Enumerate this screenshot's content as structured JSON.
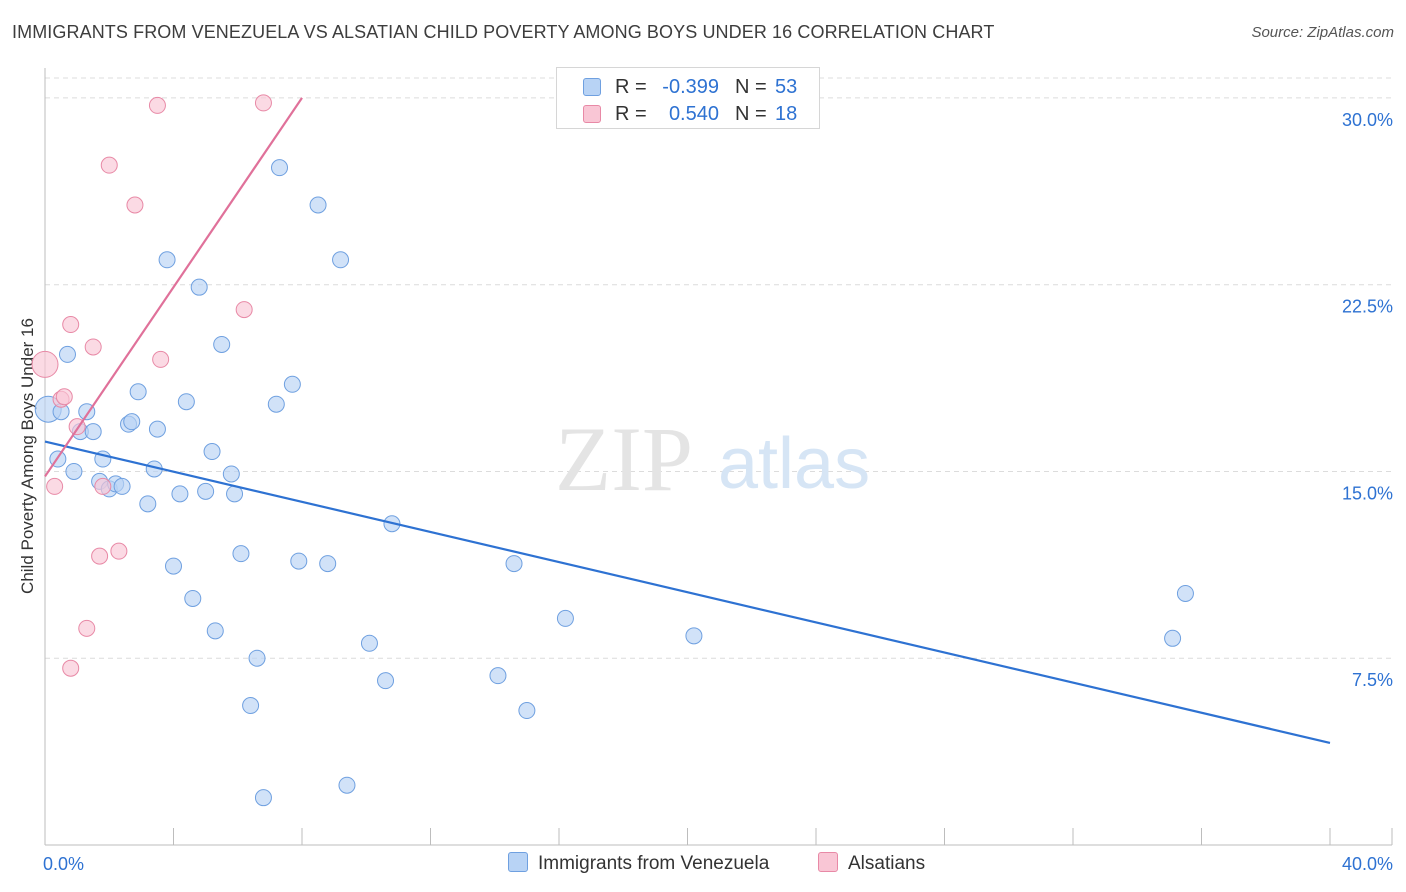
{
  "title": "IMMIGRANTS FROM VENEZUELA VS ALSATIAN CHILD POVERTY AMONG BOYS UNDER 16 CORRELATION CHART",
  "source": "Source: ZipAtlas.com",
  "watermark": {
    "zip": "ZIP",
    "atlas": "atlas"
  },
  "legend": {
    "r_label": "R =",
    "n_label": "N =",
    "rows": [
      {
        "r": "-0.399",
        "n": "53",
        "fill": "#b8d3f5",
        "stroke": "#6fa0e0"
      },
      {
        "r": "0.540",
        "n": "18",
        "fill": "#f9c6d5",
        "stroke": "#e889a6"
      }
    ]
  },
  "bottom_legend": [
    {
      "label": "Immigrants from Venezuela",
      "fill": "#b8d3f5",
      "stroke": "#6fa0e0"
    },
    {
      "label": "Alsatians",
      "fill": "#f9c6d5",
      "stroke": "#e889a6"
    }
  ],
  "chart_data": {
    "type": "scatter",
    "title": "IMMIGRANTS FROM VENEZUELA VS ALSATIAN CHILD POVERTY AMONG BOYS UNDER 16 CORRELATION CHART",
    "xlabel": "",
    "ylabel": "Child Poverty Among Boys Under 16",
    "xlim": [
      0,
      40
    ],
    "ylim": [
      0,
      30.8
    ],
    "x_tick_labels": [
      "0.0%",
      "40.0%"
    ],
    "y_ticks": [
      7.5,
      15.0,
      22.5,
      30.0
    ],
    "y_tick_labels": [
      "7.5%",
      "15.0%",
      "22.5%",
      "30.0%"
    ],
    "grid": true,
    "series": [
      {
        "name": "Immigrants from Venezuela",
        "color": "#2e72d2",
        "point_fill": "#b8d3f5",
        "point_stroke": "#6fa0e0",
        "points": [
          [
            0.1,
            17.5
          ],
          [
            0.4,
            15.5
          ],
          [
            0.5,
            17.4
          ],
          [
            0.7,
            19.7
          ],
          [
            0.9,
            15.0
          ],
          [
            1.1,
            16.6
          ],
          [
            1.3,
            17.4
          ],
          [
            1.5,
            16.6
          ],
          [
            1.7,
            14.6
          ],
          [
            1.8,
            15.5
          ],
          [
            2.0,
            14.3
          ],
          [
            2.2,
            14.5
          ],
          [
            2.4,
            14.4
          ],
          [
            2.6,
            16.9
          ],
          [
            2.7,
            17.0
          ],
          [
            2.9,
            18.2
          ],
          [
            3.2,
            13.7
          ],
          [
            3.4,
            15.1
          ],
          [
            3.5,
            16.7
          ],
          [
            3.8,
            23.5
          ],
          [
            4.0,
            11.2
          ],
          [
            4.2,
            14.1
          ],
          [
            4.4,
            17.8
          ],
          [
            4.6,
            9.9
          ],
          [
            4.8,
            22.4
          ],
          [
            5.0,
            14.2
          ],
          [
            5.2,
            15.8
          ],
          [
            5.3,
            8.6
          ],
          [
            5.5,
            20.1
          ],
          [
            5.8,
            14.9
          ],
          [
            5.9,
            14.1
          ],
          [
            6.1,
            11.7
          ],
          [
            6.4,
            5.6
          ],
          [
            6.6,
            7.5
          ],
          [
            6.8,
            1.9
          ],
          [
            7.2,
            17.7
          ],
          [
            7.3,
            27.2
          ],
          [
            7.7,
            18.5
          ],
          [
            7.9,
            11.4
          ],
          [
            8.5,
            25.7
          ],
          [
            8.8,
            11.3
          ],
          [
            9.2,
            23.5
          ],
          [
            9.4,
            2.4
          ],
          [
            10.1,
            8.1
          ],
          [
            10.6,
            6.6
          ],
          [
            10.8,
            12.9
          ],
          [
            14.1,
            6.8
          ],
          [
            14.6,
            11.3
          ],
          [
            15.0,
            5.4
          ],
          [
            16.2,
            9.1
          ],
          [
            20.2,
            8.4
          ],
          [
            35.1,
            8.3
          ],
          [
            35.5,
            10.1
          ]
        ]
      },
      {
        "name": "Alsatians",
        "color": "#e0719a",
        "point_fill": "#f9c6d5",
        "point_stroke": "#e889a6",
        "points": [
          [
            0.0,
            19.3
          ],
          [
            0.3,
            14.4
          ],
          [
            0.5,
            17.9
          ],
          [
            0.6,
            18.0
          ],
          [
            0.8,
            7.1
          ],
          [
            0.8,
            20.9
          ],
          [
            1.0,
            16.8
          ],
          [
            1.3,
            8.7
          ],
          [
            1.5,
            20.0
          ],
          [
            1.7,
            11.6
          ],
          [
            1.8,
            14.4
          ],
          [
            2.0,
            27.3
          ],
          [
            2.3,
            11.8
          ],
          [
            2.8,
            25.7
          ],
          [
            3.5,
            29.7
          ],
          [
            3.6,
            19.5
          ],
          [
            6.2,
            21.5
          ],
          [
            6.8,
            29.8
          ]
        ]
      }
    ],
    "trendlines": [
      {
        "series": "Immigrants from Venezuela",
        "x": [
          0.0,
          40.0
        ],
        "y": [
          16.2,
          4.1
        ]
      },
      {
        "series": "Alsatians",
        "x": [
          0.0,
          8.0
        ],
        "y": [
          14.8,
          30.0
        ]
      }
    ]
  }
}
